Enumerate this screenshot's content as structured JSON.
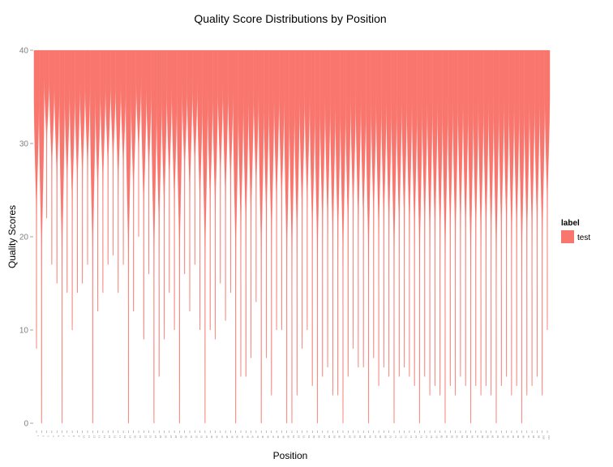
{
  "chart_data": {
    "type": "violin",
    "title": "Quality Score Distributions by Position",
    "xlabel": "Position",
    "ylabel": "Quality Scores",
    "ylim": [
      0,
      40
    ],
    "yticks": [
      0,
      10,
      20,
      30,
      40
    ],
    "x_positions": {
      "start": 1,
      "end": 101
    },
    "grid": false,
    "legend": {
      "title": "label",
      "entries": [
        "test"
      ],
      "placement": "right"
    },
    "series": [
      {
        "name": "test",
        "color": "#F8766D",
        "min_by_position": [
          8,
          0,
          22,
          17,
          15,
          0,
          14,
          10,
          14,
          15,
          17,
          0,
          12,
          14,
          17,
          18,
          14,
          17,
          0,
          12,
          20,
          9,
          16,
          0,
          5,
          9,
          14,
          10,
          0,
          16,
          12,
          17,
          10,
          0,
          10,
          9,
          15,
          11,
          14,
          0,
          5,
          5,
          7,
          13,
          0,
          7,
          3,
          10,
          10,
          0,
          0,
          3,
          8,
          10,
          4,
          0,
          5,
          6,
          3,
          3,
          0,
          5,
          8,
          6,
          6,
          0,
          7,
          4,
          6,
          5,
          0,
          5,
          6,
          5,
          4,
          0,
          5,
          3,
          4,
          3,
          0,
          4,
          3,
          5,
          4,
          0,
          4,
          3,
          4,
          3,
          0,
          4,
          5,
          3,
          4,
          0,
          3,
          4,
          5,
          3,
          10
        ],
        "max": 40
      }
    ]
  }
}
